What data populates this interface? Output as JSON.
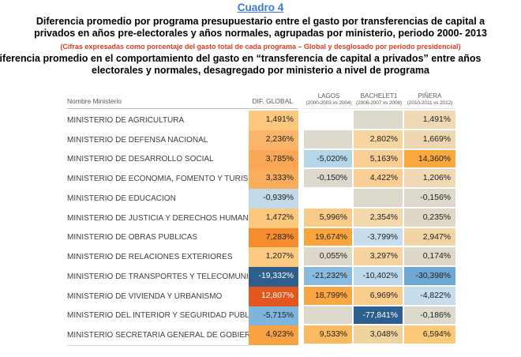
{
  "header": {
    "cuadro": "Cuadro 4",
    "title1_l1": "Diferencia promedio por programa presupuestario entre el gasto por transferencias de capital a",
    "title1_l2": "privados en años pre-electorales y años normales, agrupadas por ministerio, periodo 2000- 2013",
    "red_note": "(Cifras expresadas como porcentaje del gasto total de cada programa – Global y desglosado por periodo presidencial)",
    "title2_l1": "Diferencia promedio en el comportamiento del gasto en “transferencia de capital a privados” entre años",
    "title2_l2": "electorales y normales, desagregado por ministerio a nivel de programa"
  },
  "table": {
    "columns": {
      "name": "Nombre Ministerio",
      "global": "DIF. GLOBAL",
      "periods": [
        {
          "name": "LAGOS",
          "range": "(2000-2003 vs 2004)"
        },
        {
          "name": "BACHELET1",
          "range": "(2006-2007 vs 2008)"
        },
        {
          "name": "PIÑERA",
          "range": "(2010-2011 vs 2012)"
        }
      ]
    },
    "rows": [
      {
        "name": "MINISTERIO DE AGRICULTURA",
        "global": {
          "t": "1,491%",
          "bg": "#FBC87D"
        },
        "lagos": {
          "t": "",
          "bg": ""
        },
        "bachelet": {
          "t": "",
          "bg": "#DDD9CC"
        },
        "pinera": {
          "t": "1,491%",
          "bg": "#EFD9B5"
        }
      },
      {
        "name": "MINISTERIO DE DEFENSA NACIONAL",
        "global": {
          "t": "2,236%",
          "bg": "#FBB56A"
        },
        "lagos": {
          "t": "",
          "bg": "#DDD9CC"
        },
        "bachelet": {
          "t": "2,802%",
          "bg": "#F7D5A1"
        },
        "pinera": {
          "t": "1,669%",
          "bg": "#EFD8B1"
        }
      },
      {
        "name": "MINISTERIO DE DESARROLLO SOCIAL",
        "global": {
          "t": "3,785%",
          "bg": "#FAA855"
        },
        "lagos": {
          "t": "-5,020%",
          "bg": "#B5D6E8"
        },
        "bachelet": {
          "t": "5,163%",
          "bg": "#FACD92"
        },
        "pinera": {
          "t": "14,360%",
          "bg": "#FBA93F"
        }
      },
      {
        "name": "MINISTERIO DE ECONOMÍA, FOMENTO Y TURISMO",
        "global": {
          "t": "3,333%",
          "bg": "#FAAD5C"
        },
        "lagos": {
          "t": "-0,150%",
          "bg": "#DDD9CC"
        },
        "bachelet": {
          "t": "4,422%",
          "bg": "#F9CF96"
        },
        "pinera": {
          "t": "1,206%",
          "bg": "#F0D9B4"
        }
      },
      {
        "name": "MINISTERIO DE EDUCACIÓN",
        "global": {
          "t": "-0,939%",
          "bg": "#C2D9E7"
        },
        "lagos": {
          "t": "",
          "bg": ""
        },
        "bachelet": {
          "t": "",
          "bg": "#DDD9CC"
        },
        "pinera": {
          "t": "-0,156%",
          "bg": "#DDD9CC"
        }
      },
      {
        "name": "MINISTERIO DE JUSTICIA Y DERECHOS HUMANOS",
        "global": {
          "t": "1,472%",
          "bg": "#FBC87D"
        },
        "lagos": {
          "t": "5,996%",
          "bg": "#FACB88"
        },
        "bachelet": {
          "t": "2,354%",
          "bg": "#F3D8AB"
        },
        "pinera": {
          "t": "0,235%",
          "bg": "#DFD8C7"
        }
      },
      {
        "name": "MINISTERIO DE OBRAS PÚBLICAS",
        "global": {
          "t": "7,283%",
          "bg": "#F78C2E"
        },
        "lagos": {
          "t": "19,674%",
          "bg": "#FBA53E"
        },
        "bachelet": {
          "t": "-3,799%",
          "bg": "#C6DEEC"
        },
        "pinera": {
          "t": "2,947%",
          "bg": "#F2D5A4"
        }
      },
      {
        "name": "MINISTERIO DE RELACIONES EXTERIORES",
        "global": {
          "t": "1,207%",
          "bg": "#FCCA82"
        },
        "lagos": {
          "t": "0,055%",
          "bg": "#DDD8CA"
        },
        "bachelet": {
          "t": "3,297%",
          "bg": "#F6D3A0"
        },
        "pinera": {
          "t": "0,174%",
          "bg": "#DED8C9"
        }
      },
      {
        "name": "MINISTERIO DE TRANSPORTES Y TELECOMUNICACIONES",
        "global": {
          "t": "-19,332%",
          "bg": "#2E5F8C",
          "fg": "#FFFFFF"
        },
        "lagos": {
          "t": "-21,232%",
          "bg": "#8ABADE"
        },
        "bachelet": {
          "t": "-10,402%",
          "bg": "#BCD8EA"
        },
        "pinera": {
          "t": "-30,398%",
          "bg": "#6FA7D3"
        }
      },
      {
        "name": "MINISTERIO DE VIVIENDA Y URBANISMO",
        "global": {
          "t": "12,807%",
          "bg": "#E2571D",
          "fg": "#FFFFFF"
        },
        "lagos": {
          "t": "18,799%",
          "bg": "#FBA644"
        },
        "bachelet": {
          "t": "6,969%",
          "bg": "#FBCD8C"
        },
        "pinera": {
          "t": "-4,822%",
          "bg": "#C5DDEC"
        }
      },
      {
        "name": "MINISTERIO DEL INTERIOR Y SEGURIDAD PÚBLICA",
        "global": {
          "t": "-5,715%",
          "bg": "#7FB5DC"
        },
        "lagos": {
          "t": "",
          "bg": "#DDD9CC"
        },
        "bachelet": {
          "t": "-77,841%",
          "bg": "#2C5E8E",
          "fg": "#FFFFFF"
        },
        "pinera": {
          "t": "-0,186%",
          "bg": "#DDD9CC"
        }
      },
      {
        "name": "MINISTERIO SECRETARÍA GENERAL DE GOBIERNO",
        "global": {
          "t": "4,923%",
          "bg": "#F9A243"
        },
        "lagos": {
          "t": "9,533%",
          "bg": "#FBB960"
        },
        "bachelet": {
          "t": "3,048%",
          "bg": "#EFD4A0"
        },
        "pinera": {
          "t": "6,594%",
          "bg": "#FCC979"
        }
      }
    ]
  },
  "chart_data": {
    "type": "heatmap",
    "title": "Cuadro 4 — Diferencia promedio por programa presupuestario (transferencias de capital a privados), 2000-2013",
    "rows": [
      "MINISTERIO DE AGRICULTURA",
      "MINISTERIO DE DEFENSA NACIONAL",
      "MINISTERIO DE DESARROLLO SOCIAL",
      "MINISTERIO DE ECONOMÍA, FOMENTO Y TURISMO",
      "MINISTERIO DE EDUCACIÓN",
      "MINISTERIO DE JUSTICIA Y DERECHOS HUMANOS",
      "MINISTERIO DE OBRAS PÚBLICAS",
      "MINISTERIO DE RELACIONES EXTERIORES",
      "MINISTERIO DE TRANSPORTES Y TELECOMUNICACIONES",
      "MINISTERIO DE VIVIENDA Y URBANISMO",
      "MINISTERIO DEL INTERIOR Y SEGURIDAD PÚBLICA",
      "MINISTERIO SECRETARÍA GENERAL DE GOBIERNO"
    ],
    "columns": [
      "DIF. GLOBAL",
      "LAGOS (2000-2003 vs 2004)",
      "BACHELET1 (2006-2007 vs 2008)",
      "PIÑERA (2010-2011 vs 2012)"
    ],
    "values_pct": [
      [
        1.491,
        null,
        null,
        1.491
      ],
      [
        2.236,
        null,
        2.802,
        1.669
      ],
      [
        3.785,
        -5.02,
        5.163,
        14.36
      ],
      [
        3.333,
        -0.15,
        4.422,
        1.206
      ],
      [
        -0.939,
        null,
        null,
        -0.156
      ],
      [
        1.472,
        5.996,
        2.354,
        0.235
      ],
      [
        7.283,
        19.674,
        -3.799,
        2.947
      ],
      [
        1.207,
        0.055,
        3.297,
        0.174
      ],
      [
        -19.332,
        -21.232,
        -10.402,
        -30.398
      ],
      [
        12.807,
        18.799,
        6.969,
        -4.822
      ],
      [
        -5.715,
        null,
        -77.841,
        -0.186
      ],
      [
        4.923,
        9.533,
        3.048,
        6.594
      ]
    ],
    "colorscale": {
      "negative": "#2E5F8C",
      "neutral": "#DDD9CC",
      "positive": "#E2571D"
    }
  }
}
